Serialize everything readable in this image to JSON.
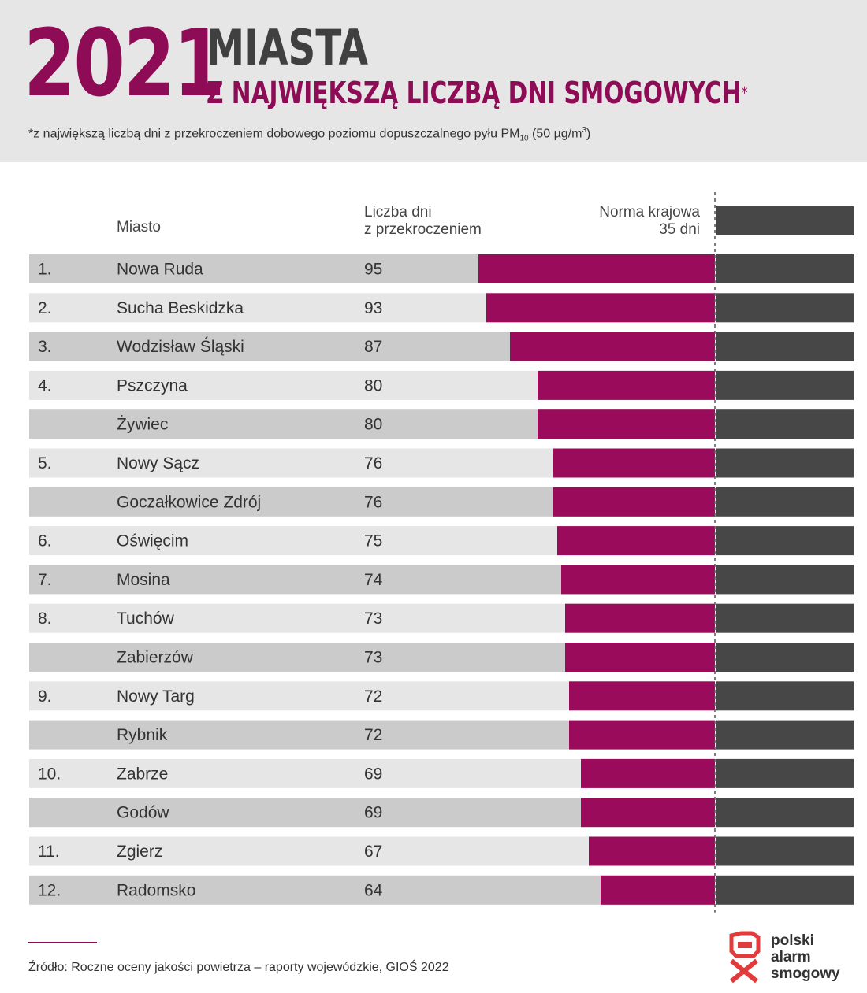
{
  "header": {
    "year": "2021",
    "title_line1": "MIASTA",
    "title_line2": "Z NAJWIĘKSZĄ LICZBĄ DNI SMOGOWYCH",
    "title_mark": "*",
    "footnote_main": "*z największą liczbą dni z przekroczeniem dobowego poziomu dopuszczalnego pyłu PM",
    "footnote_sub": "10",
    "footnote_unit": " (50 µg/m",
    "footnote_sup": "3",
    "footnote_close": ")"
  },
  "table_headers": {
    "city": "Miasto",
    "days_line1": "Liczba dni",
    "days_line2": "z przekroczeniem",
    "norm_line1": "Norma krajowa",
    "norm_line2": "35 dni"
  },
  "chart_data": {
    "type": "bar",
    "orientation": "horizontal",
    "title": "MIASTA Z NAJWIĘKSZĄ LICZBĄ DNI SMOGOWYCH",
    "threshold": {
      "label": "Norma krajowa 35 dni",
      "value": 35
    },
    "rows": [
      {
        "rank": "1.",
        "city": "Nowa Ruda",
        "value": 95
      },
      {
        "rank": "2.",
        "city": "Sucha Beskidzka",
        "value": 93
      },
      {
        "rank": "3.",
        "city": "Wodzisław Śląski",
        "value": 87
      },
      {
        "rank": "4.",
        "city": "Pszczyna",
        "value": 80
      },
      {
        "rank": "",
        "city": "Żywiec",
        "value": 80
      },
      {
        "rank": "5.",
        "city": "Nowy Sącz",
        "value": 76
      },
      {
        "rank": "",
        "city": "Goczałkowice Zdrój",
        "value": 76
      },
      {
        "rank": "6.",
        "city": "Oświęcim",
        "value": 75
      },
      {
        "rank": "7.",
        "city": "Mosina",
        "value": 74
      },
      {
        "rank": "8.",
        "city": "Tuchów",
        "value": 73
      },
      {
        "rank": "",
        "city": "Zabierzów",
        "value": 73
      },
      {
        "rank": "9.",
        "city": "Nowy Targ",
        "value": 72
      },
      {
        "rank": "",
        "city": "Rybnik",
        "value": 72
      },
      {
        "rank": "10.",
        "city": "Zabrze",
        "value": 69
      },
      {
        "rank": "",
        "city": "Godów",
        "value": 69
      },
      {
        "rank": "11.",
        "city": "Zgierz",
        "value": 67
      },
      {
        "rank": "12.",
        "city": "Radomsko",
        "value": 64
      }
    ],
    "colors": {
      "excess": "#9b0b5c",
      "norm": "#474747",
      "row_dark": "#cbcbcb",
      "row_light": "#e6e6e6"
    }
  },
  "footer": {
    "source": "Źródło: Roczne oceny jakości powietrza – raporty wojewódzkie, GIOŚ 2022",
    "logo_line1": "polski",
    "logo_line2": "alarm",
    "logo_line3": "smogowy"
  }
}
